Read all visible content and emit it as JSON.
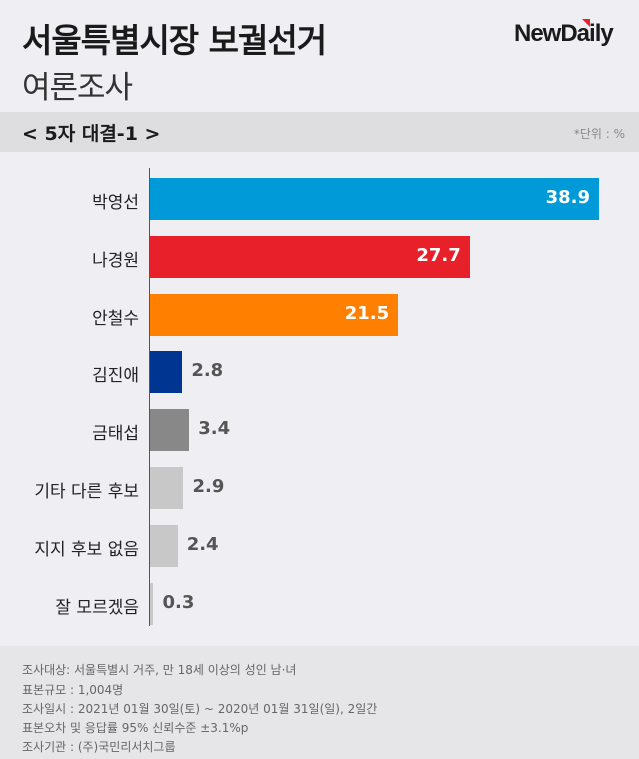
{
  "header": {
    "title": "서울특별시장 보궐선거",
    "subtitle": "여론조사",
    "logo": "NewDaily"
  },
  "band": {
    "label": "< 5자 대결-1 >",
    "unit": "*단위 : %"
  },
  "chart_data": {
    "type": "bar",
    "orientation": "horizontal",
    "categories": [
      "박영선",
      "나경원",
      "안철수",
      "김진애",
      "금태섭",
      "기타 다른 후보",
      "지지 후보 없음",
      "잘 모르겠음"
    ],
    "values": [
      38.9,
      27.7,
      21.5,
      2.8,
      3.4,
      2.9,
      2.4,
      0.3
    ],
    "value_labels": [
      "38.9",
      "27.7",
      "21.5",
      "2.8",
      "3.4",
      "2.9",
      "2.4",
      "0.3"
    ],
    "colors": [
      "#009ad9",
      "#e8202a",
      "#ff7f00",
      "#003591",
      "#888888",
      "#c8c8c8",
      "#c8c8c8",
      "#c8c8c8"
    ],
    "unit": "%",
    "grid": false
  },
  "footer": [
    "조사대상: 서울특별시 거주, 만 18세 이상의 성인 남·녀",
    "표본규모 : 1,004명",
    "조사일시 : 2021년 01월 30일(토) ~ 2020년 01월 31일(일), 2일간",
    "표본오차 및 응답률 95% 신뢰수준 ±3.1%p",
    "조사기관 : (주)국민리서치그룹"
  ]
}
